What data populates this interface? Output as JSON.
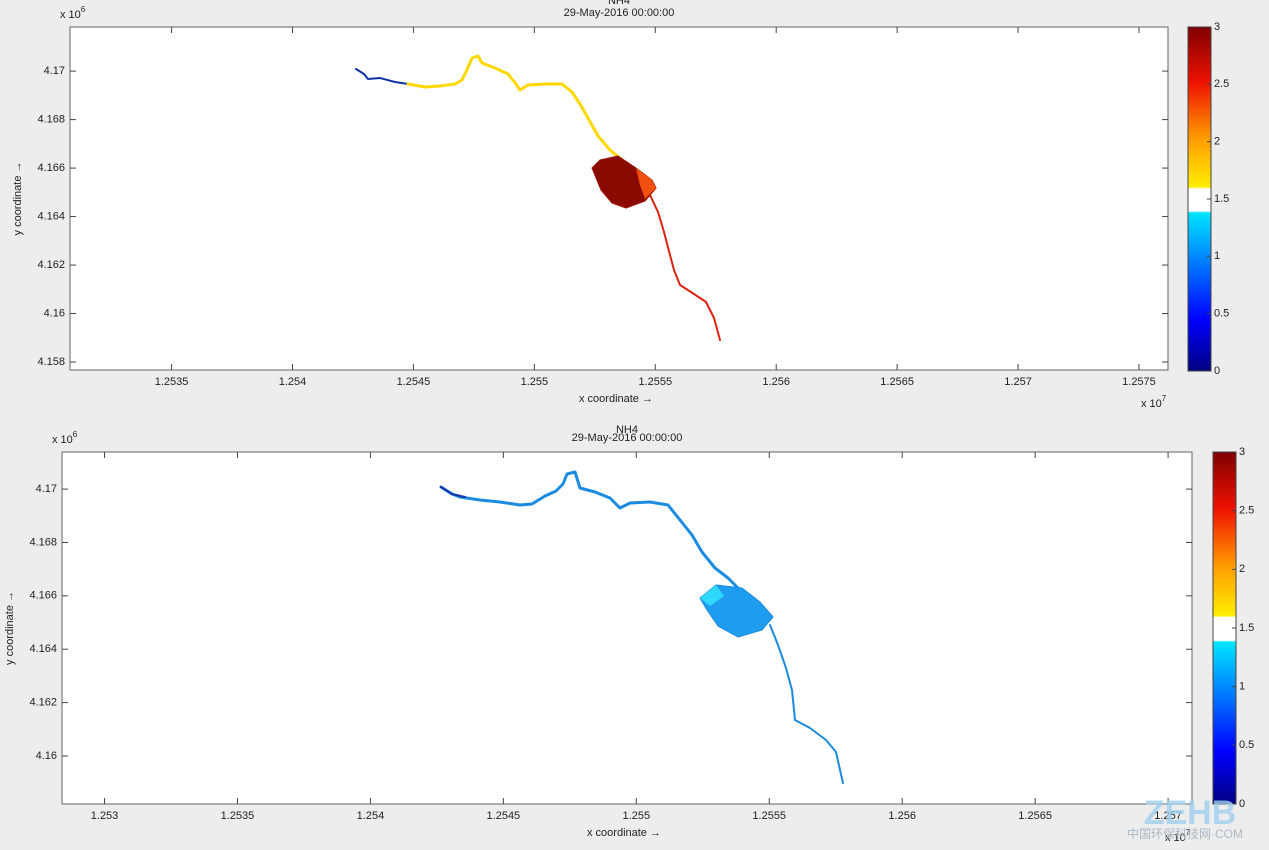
{
  "chart_data": [
    {
      "type": "map",
      "title": "NH4",
      "subtitle": "29-May-2016 00:00:00",
      "xlabel": "x coordinate →",
      "ylabel": "y coordinate →",
      "xexp": {
        "base": "x 10",
        "exp": "7"
      },
      "yexp": {
        "base": "x 10",
        "exp": "6"
      },
      "xlim": [
        1.25308,
        1.25762
      ],
      "xticks": [
        1.2535,
        1.254,
        1.2545,
        1.255,
        1.2555,
        1.256,
        1.2565,
        1.257,
        1.2575
      ],
      "ylim": [
        4.15767,
        4.17182
      ],
      "yticks": [
        4.158,
        4.16,
        4.162,
        4.164,
        4.166,
        4.168,
        4.17
      ],
      "clim": [
        0,
        3
      ],
      "cticks": [
        0,
        0.5,
        1,
        1.5,
        2,
        2.5,
        3
      ]
    },
    {
      "type": "map",
      "title": "NH4",
      "subtitle": "29-May-2016 00:00:00",
      "xlabel": "x coordinate →",
      "ylabel": "y coordinate →",
      "xexp": {
        "base": "x 10",
        "exp": "7"
      },
      "yexp": {
        "base": "x 10",
        "exp": "6"
      },
      "xlim": [
        1.25284,
        1.25709
      ],
      "xticks": [
        1.253,
        1.2535,
        1.254,
        1.2545,
        1.255,
        1.2555,
        1.256,
        1.2565,
        1.257
      ],
      "ylim": [
        4.1582,
        4.17139
      ],
      "yticks": [
        4.16,
        4.162,
        4.164,
        4.166,
        4.168,
        4.17
      ],
      "clim": [
        0,
        3
      ],
      "cticks": [
        0,
        0.5,
        1,
        1.5,
        2,
        2.5,
        3
      ]
    }
  ],
  "watermark": {
    "logo": "ZEHB",
    "text": "中国环保科技网·COM"
  }
}
